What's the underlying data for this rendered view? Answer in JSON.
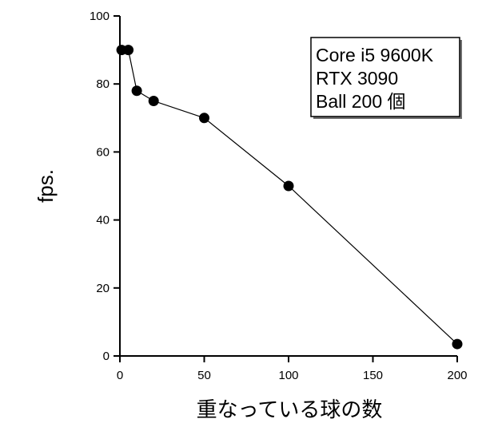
{
  "chart_data": {
    "type": "line",
    "title": "",
    "xlabel": "重なっている球の数",
    "ylabel": "fps.",
    "xlim": [
      0,
      200
    ],
    "ylim": [
      0,
      100
    ],
    "xticks": [
      0,
      50,
      100,
      150,
      200
    ],
    "yticks": [
      0,
      20,
      40,
      60,
      80,
      100
    ],
    "grid": false,
    "legend": {
      "placement": "top-right",
      "lines": [
        "Core i5 9600K",
        "RTX 3090",
        "Ball 200 個"
      ]
    },
    "series": [
      {
        "x": [
          1,
          5,
          10,
          20,
          50,
          100,
          200
        ],
        "y": [
          90,
          90,
          78,
          75,
          70,
          50,
          3.5
        ],
        "color": "#000000",
        "marker": "circle"
      }
    ]
  }
}
